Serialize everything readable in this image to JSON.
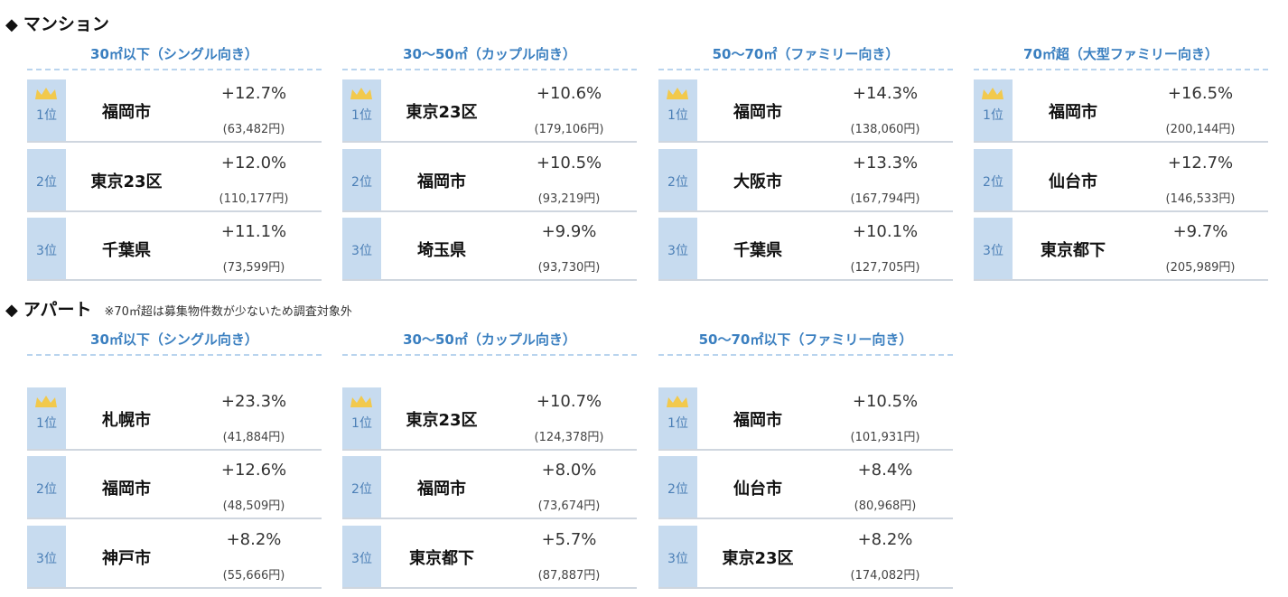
{
  "sections": [
    {
      "title": "マンション",
      "note": "",
      "columns": [
        {
          "header": "30㎡以下（シングル向き）",
          "rows": [
            {
              "rank": "1位",
              "city": "福岡市",
              "pct": "+12.7%",
              "yen": "(63,482円)"
            },
            {
              "rank": "2位",
              "city": "東京23区",
              "pct": "+12.0%",
              "yen": "(110,177円)"
            },
            {
              "rank": "3位",
              "city": "千葉県",
              "pct": "+11.1%",
              "yen": "(73,599円)"
            }
          ]
        },
        {
          "header": "30〜50㎡（カップル向き）",
          "rows": [
            {
              "rank": "1位",
              "city": "東京23区",
              "pct": "+10.6%",
              "yen": "(179,106円)"
            },
            {
              "rank": "2位",
              "city": "福岡市",
              "pct": "+10.5%",
              "yen": "(93,219円)"
            },
            {
              "rank": "3位",
              "city": "埼玉県",
              "pct": "+9.9%",
              "yen": "(93,730円)"
            }
          ]
        },
        {
          "header": "50〜70㎡（ファミリー向き）",
          "rows": [
            {
              "rank": "1位",
              "city": "福岡市",
              "pct": "+14.3%",
              "yen": "(138,060円)"
            },
            {
              "rank": "2位",
              "city": "大阪市",
              "pct": "+13.3%",
              "yen": "(167,794円)"
            },
            {
              "rank": "3位",
              "city": "千葉県",
              "pct": "+10.1%",
              "yen": "(127,705円)"
            }
          ]
        },
        {
          "header": "70㎡超（大型ファミリー向き）",
          "rows": [
            {
              "rank": "1位",
              "city": "福岡市",
              "pct": "+16.5%",
              "yen": "(200,144円)"
            },
            {
              "rank": "2位",
              "city": "仙台市",
              "pct": "+12.7%",
              "yen": "(146,533円)"
            },
            {
              "rank": "3位",
              "city": "東京都下",
              "pct": "+9.7%",
              "yen": "(205,989円)"
            }
          ]
        }
      ]
    },
    {
      "title": "アパート",
      "note": "※70㎡超は募集物件数が少ないため調査対象外",
      "columns": [
        {
          "header": "30㎡以下（シングル向き）",
          "rows": [
            {
              "rank": "1位",
              "city": "札幌市",
              "pct": "+23.3%",
              "yen": "(41,884円)"
            },
            {
              "rank": "2位",
              "city": "福岡市",
              "pct": "+12.6%",
              "yen": "(48,509円)"
            },
            {
              "rank": "3位",
              "city": "神戸市",
              "pct": "+8.2%",
              "yen": "(55,666円)"
            }
          ]
        },
        {
          "header": "30〜50㎡（カップル向き）",
          "rows": [
            {
              "rank": "1位",
              "city": "東京23区",
              "pct": "+10.7%",
              "yen": "(124,378円)"
            },
            {
              "rank": "2位",
              "city": "福岡市",
              "pct": "+8.0%",
              "yen": "(73,674円)"
            },
            {
              "rank": "3位",
              "city": "東京都下",
              "pct": "+5.7%",
              "yen": "(87,887円)"
            }
          ]
        },
        {
          "header": "50〜70㎡以下（ファミリー向き）",
          "rows": [
            {
              "rank": "1位",
              "city": "福岡市",
              "pct": "+10.5%",
              "yen": "(101,931円)"
            },
            {
              "rank": "2位",
              "city": "仙台市",
              "pct": "+8.4%",
              "yen": "(80,968円)"
            },
            {
              "rank": "3位",
              "city": "東京23区",
              "pct": "+8.2%",
              "yen": "(174,082円)"
            }
          ]
        }
      ]
    }
  ],
  "colors": {
    "accent": "#3a7fc0",
    "rank_bg": "#c7dbef",
    "crown": "#f2c94c"
  },
  "icons": {
    "section_marker": "diamond-icon",
    "first_place": "crown-icon"
  }
}
